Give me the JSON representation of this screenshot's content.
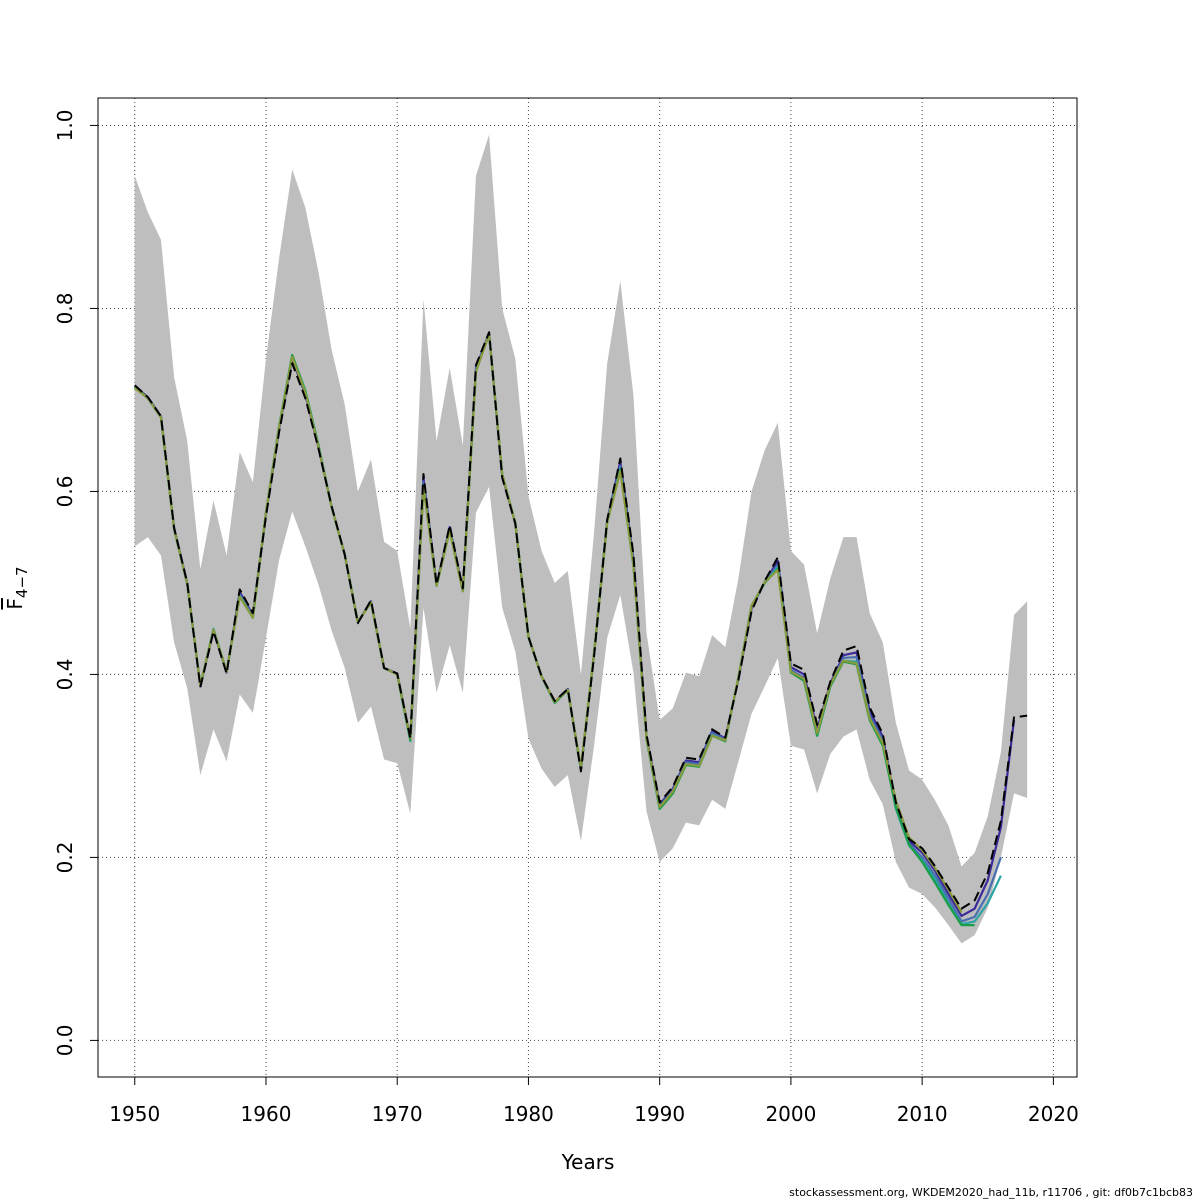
{
  "chart_data": {
    "type": "line",
    "title": "",
    "xlabel": "Years",
    "ylabel": "F̅ 4−7",
    "ylabel_main": "F",
    "ylabel_sub": "4−7",
    "xlim": [
      1947.2,
      2021.8
    ],
    "ylim": [
      -0.04,
      1.03
    ],
    "xticks": [
      1950,
      1960,
      1970,
      1980,
      1990,
      2000,
      2010,
      2020
    ],
    "yticks": [
      0.0,
      0.2,
      0.4,
      0.6,
      0.8,
      1.0
    ],
    "ytick_labels": [
      "0.0",
      "0.2",
      "0.4",
      "0.6",
      "0.8",
      "1.0"
    ],
    "grid": true,
    "confidence_band": {
      "color": "#bebebe",
      "x": [
        1950,
        1951,
        1952,
        1953,
        1954,
        1955,
        1956,
        1957,
        1958,
        1959,
        1960,
        1961,
        1962,
        1963,
        1964,
        1965,
        1966,
        1967,
        1968,
        1969,
        1970,
        1971,
        1972,
        1973,
        1974,
        1975,
        1976,
        1977,
        1978,
        1979,
        1980,
        1981,
        1982,
        1983,
        1984,
        1985,
        1986,
        1987,
        1988,
        1989,
        1990,
        1991,
        1992,
        1993,
        1994,
        1995,
        1996,
        1997,
        1998,
        1999,
        2000,
        2001,
        2002,
        2003,
        2004,
        2005,
        2006,
        2007,
        2008,
        2009,
        2010,
        2011,
        2012,
        2013,
        2014,
        2015,
        2016,
        2017,
        2018
      ],
      "upper": [
        0.945,
        0.905,
        0.875,
        0.725,
        0.655,
        0.515,
        0.59,
        0.53,
        0.643,
        0.61,
        0.745,
        0.855,
        0.952,
        0.91,
        0.84,
        0.755,
        0.695,
        0.6,
        0.635,
        0.545,
        0.535,
        0.45,
        0.81,
        0.655,
        0.735,
        0.65,
        0.945,
        0.99,
        0.8,
        0.745,
        0.595,
        0.535,
        0.5,
        0.513,
        0.4,
        0.555,
        0.74,
        0.83,
        0.705,
        0.445,
        0.35,
        0.363,
        0.402,
        0.398,
        0.443,
        0.43,
        0.505,
        0.6,
        0.645,
        0.675,
        0.535,
        0.52,
        0.445,
        0.505,
        0.55,
        0.55,
        0.467,
        0.435,
        0.347,
        0.295,
        0.285,
        0.262,
        0.235,
        0.19,
        0.205,
        0.245,
        0.315,
        0.465,
        0.48
      ],
      "lower": [
        0.54,
        0.55,
        0.53,
        0.435,
        0.385,
        0.29,
        0.34,
        0.305,
        0.378,
        0.358,
        0.44,
        0.525,
        0.578,
        0.54,
        0.498,
        0.448,
        0.407,
        0.347,
        0.365,
        0.307,
        0.303,
        0.248,
        0.473,
        0.38,
        0.432,
        0.38,
        0.577,
        0.605,
        0.473,
        0.425,
        0.33,
        0.297,
        0.277,
        0.29,
        0.218,
        0.322,
        0.44,
        0.487,
        0.402,
        0.25,
        0.195,
        0.21,
        0.238,
        0.235,
        0.263,
        0.253,
        0.305,
        0.357,
        0.387,
        0.418,
        0.322,
        0.318,
        0.27,
        0.313,
        0.332,
        0.34,
        0.285,
        0.258,
        0.195,
        0.167,
        0.16,
        0.145,
        0.126,
        0.106,
        0.115,
        0.145,
        0.2,
        0.27,
        0.265
      ]
    },
    "series": [
      {
        "color": "#000000",
        "dash": "10,5",
        "x": [
          1950,
          1951,
          1952,
          1953,
          1954,
          1955,
          1956,
          1957,
          1958,
          1959,
          1960,
          1961,
          1962,
          1963,
          1964,
          1965,
          1966,
          1967,
          1968,
          1969,
          1970,
          1971,
          1972,
          1973,
          1974,
          1975,
          1976,
          1977,
          1978,
          1979,
          1980,
          1981,
          1982,
          1983,
          1984,
          1985,
          1986,
          1987,
          1988,
          1989,
          1990,
          1991,
          1992,
          1993,
          1994,
          1995,
          1996,
          1997,
          1998,
          1999,
          2000,
          2001,
          2002,
          2003,
          2004,
          2005,
          2006,
          2007,
          2008,
          2009,
          2010,
          2011,
          2012,
          2013,
          2014,
          2015,
          2016,
          2017,
          2018
        ],
        "values": [
          0.716,
          0.703,
          0.682,
          0.56,
          0.5,
          0.386,
          0.447,
          0.401,
          0.493,
          0.467,
          0.573,
          0.665,
          0.74,
          0.702,
          0.647,
          0.584,
          0.531,
          0.456,
          0.481,
          0.407,
          0.401,
          0.33,
          0.619,
          0.498,
          0.563,
          0.494,
          0.738,
          0.774,
          0.615,
          0.565,
          0.441,
          0.398,
          0.371,
          0.384,
          0.294,
          0.42,
          0.569,
          0.636,
          0.531,
          0.334,
          0.26,
          0.277,
          0.309,
          0.307,
          0.34,
          0.331,
          0.394,
          0.469,
          0.502,
          0.528,
          0.412,
          0.405,
          0.345,
          0.392,
          0.426,
          0.431,
          0.364,
          0.335,
          0.26,
          0.22,
          0.21,
          0.19,
          0.167,
          0.144,
          0.153,
          0.183,
          0.24,
          0.353,
          0.355
        ]
      },
      {
        "color": "#3b2b9a",
        "x": [
          1950,
          1951,
          1952,
          1953,
          1954,
          1955,
          1956,
          1957,
          1958,
          1959,
          1960,
          1961,
          1962,
          1963,
          1964,
          1965,
          1966,
          1967,
          1968,
          1969,
          1970,
          1971,
          1972,
          1973,
          1974,
          1975,
          1976,
          1977,
          1978,
          1979,
          1980,
          1981,
          1982,
          1983,
          1984,
          1985,
          1986,
          1987,
          1988,
          1989,
          1990,
          1991,
          1992,
          1993,
          1994,
          1995,
          1996,
          1997,
          1998,
          1999,
          2000,
          2001,
          2002,
          2003,
          2004,
          2005,
          2006,
          2007,
          2008,
          2009,
          2010,
          2011,
          2012,
          2013,
          2014,
          2015,
          2016,
          2017
        ],
        "values": [
          0.715,
          0.703,
          0.682,
          0.56,
          0.5,
          0.387,
          0.448,
          0.402,
          0.49,
          0.465,
          0.575,
          0.668,
          0.745,
          0.706,
          0.648,
          0.583,
          0.531,
          0.457,
          0.48,
          0.407,
          0.401,
          0.33,
          0.615,
          0.498,
          0.561,
          0.493,
          0.735,
          0.773,
          0.617,
          0.565,
          0.441,
          0.398,
          0.37,
          0.384,
          0.296,
          0.422,
          0.568,
          0.633,
          0.526,
          0.332,
          0.258,
          0.275,
          0.306,
          0.304,
          0.338,
          0.33,
          0.395,
          0.472,
          0.501,
          0.524,
          0.408,
          0.4,
          0.34,
          0.39,
          0.421,
          0.424,
          0.36,
          0.332,
          0.257,
          0.218,
          0.205,
          0.185,
          0.16,
          0.136,
          0.144,
          0.175,
          0.233,
          0.35
        ]
      },
      {
        "color": "#4a6fb0",
        "x": [
          1950,
          1951,
          1952,
          1953,
          1954,
          1955,
          1956,
          1957,
          1958,
          1959,
          1960,
          1961,
          1962,
          1963,
          1964,
          1965,
          1966,
          1967,
          1968,
          1969,
          1970,
          1971,
          1972,
          1973,
          1974,
          1975,
          1976,
          1977,
          1978,
          1979,
          1980,
          1981,
          1982,
          1983,
          1984,
          1985,
          1986,
          1987,
          1988,
          1989,
          1990,
          1991,
          1992,
          1993,
          1994,
          1995,
          1996,
          1997,
          1998,
          1999,
          2000,
          2001,
          2002,
          2003,
          2004,
          2005,
          2006,
          2007,
          2008,
          2009,
          2010,
          2011,
          2012,
          2013,
          2014,
          2015,
          2016
        ],
        "values": [
          0.714,
          0.702,
          0.681,
          0.559,
          0.499,
          0.388,
          0.449,
          0.403,
          0.487,
          0.464,
          0.576,
          0.67,
          0.747,
          0.708,
          0.65,
          0.583,
          0.531,
          0.457,
          0.479,
          0.407,
          0.4,
          0.329,
          0.61,
          0.497,
          0.559,
          0.492,
          0.733,
          0.772,
          0.618,
          0.565,
          0.441,
          0.398,
          0.369,
          0.383,
          0.297,
          0.423,
          0.567,
          0.628,
          0.522,
          0.33,
          0.256,
          0.273,
          0.304,
          0.302,
          0.336,
          0.329,
          0.396,
          0.474,
          0.5,
          0.52,
          0.405,
          0.396,
          0.336,
          0.388,
          0.418,
          0.419,
          0.355,
          0.328,
          0.254,
          0.215,
          0.2,
          0.18,
          0.155,
          0.13,
          0.135,
          0.16,
          0.2
        ]
      },
      {
        "color": "#29a3a3",
        "x": [
          1950,
          1951,
          1952,
          1953,
          1954,
          1955,
          1956,
          1957,
          1958,
          1959,
          1960,
          1961,
          1962,
          1963,
          1964,
          1965,
          1966,
          1967,
          1968,
          1969,
          1970,
          1971,
          1972,
          1973,
          1974,
          1975,
          1976,
          1977,
          1978,
          1979,
          1980,
          1981,
          1982,
          1983,
          1984,
          1985,
          1986,
          1987,
          1988,
          1989,
          1990,
          1991,
          1992,
          1993,
          1994,
          1995,
          1996,
          1997,
          1998,
          1999,
          2000,
          2001,
          2002,
          2003,
          2004,
          2005,
          2006,
          2007,
          2008,
          2009,
          2010,
          2011,
          2012,
          2013,
          2014,
          2015,
          2016
        ],
        "values": [
          0.714,
          0.702,
          0.681,
          0.559,
          0.499,
          0.388,
          0.45,
          0.403,
          0.486,
          0.462,
          0.577,
          0.671,
          0.749,
          0.71,
          0.651,
          0.583,
          0.531,
          0.457,
          0.479,
          0.407,
          0.4,
          0.327,
          0.607,
          0.497,
          0.558,
          0.491,
          0.732,
          0.772,
          0.619,
          0.565,
          0.441,
          0.398,
          0.369,
          0.383,
          0.297,
          0.423,
          0.567,
          0.625,
          0.52,
          0.329,
          0.253,
          0.27,
          0.302,
          0.3,
          0.334,
          0.327,
          0.397,
          0.475,
          0.5,
          0.517,
          0.403,
          0.393,
          0.333,
          0.387,
          0.415,
          0.414,
          0.352,
          0.325,
          0.253,
          0.213,
          0.197,
          0.176,
          0.15,
          0.127,
          0.13,
          0.15,
          0.18
        ]
      },
      {
        "color": "#1a9e46",
        "x": [
          1950,
          1951,
          1952,
          1953,
          1954,
          1955,
          1956,
          1957,
          1958,
          1959,
          1960,
          1961,
          1962,
          1963,
          1964,
          1965,
          1966,
          1967,
          1968,
          1969,
          1970,
          1971,
          1972,
          1973,
          1974,
          1975,
          1976,
          1977,
          1978,
          1979,
          1980,
          1981,
          1982,
          1983,
          1984,
          1985,
          1986,
          1987,
          1988,
          1989,
          1990,
          1991,
          1992,
          1993,
          1994,
          1995,
          1996,
          1997,
          1998,
          1999,
          2000,
          2001,
          2002,
          2003,
          2004,
          2005,
          2006,
          2007,
          2008,
          2009,
          2010,
          2011,
          2012,
          2013,
          2014
        ],
        "values": [
          0.714,
          0.702,
          0.681,
          0.559,
          0.499,
          0.388,
          0.449,
          0.403,
          0.485,
          0.462,
          0.577,
          0.671,
          0.749,
          0.71,
          0.65,
          0.583,
          0.531,
          0.457,
          0.479,
          0.407,
          0.4,
          0.328,
          0.606,
          0.497,
          0.557,
          0.491,
          0.731,
          0.772,
          0.619,
          0.565,
          0.441,
          0.398,
          0.369,
          0.383,
          0.297,
          0.423,
          0.566,
          0.623,
          0.519,
          0.329,
          0.253,
          0.27,
          0.301,
          0.299,
          0.333,
          0.327,
          0.397,
          0.475,
          0.5,
          0.515,
          0.402,
          0.393,
          0.333,
          0.387,
          0.414,
          0.411,
          0.35,
          0.322,
          0.255,
          0.214,
          0.195,
          0.172,
          0.148,
          0.126,
          0.126
        ]
      },
      {
        "color": "#8a9a3c",
        "x": [
          1950,
          1951,
          1952,
          1953,
          1954,
          1955,
          1956,
          1957,
          1958,
          1959,
          1960,
          1961,
          1962,
          1963,
          1964,
          1965,
          1966,
          1967,
          1968,
          1969,
          1970,
          1971,
          1972,
          1973,
          1974,
          1975,
          1976,
          1977,
          1978,
          1979,
          1980,
          1981,
          1982,
          1983,
          1984,
          1985,
          1986,
          1987,
          1988,
          1989,
          1990,
          1991,
          1992,
          1993,
          1994,
          1995,
          1996,
          1997,
          1998,
          1999,
          2000,
          2001,
          2002,
          2003,
          2004,
          2005,
          2006,
          2007,
          2008,
          2009,
          2010,
          2011,
          2012,
          2013
        ],
        "values": [
          0.713,
          0.702,
          0.681,
          0.559,
          0.499,
          0.388,
          0.449,
          0.403,
          0.485,
          0.462,
          0.577,
          0.67,
          0.747,
          0.708,
          0.649,
          0.583,
          0.531,
          0.457,
          0.479,
          0.407,
          0.4,
          0.33,
          0.605,
          0.497,
          0.557,
          0.491,
          0.731,
          0.772,
          0.619,
          0.565,
          0.441,
          0.398,
          0.37,
          0.383,
          0.298,
          0.423,
          0.566,
          0.622,
          0.52,
          0.33,
          0.255,
          0.272,
          0.302,
          0.3,
          0.333,
          0.328,
          0.397,
          0.475,
          0.501,
          0.514,
          0.403,
          0.395,
          0.336,
          0.389,
          0.415,
          0.412,
          0.352,
          0.325,
          0.262,
          0.222,
          0.208,
          0.188,
          0.165,
          0.14
        ]
      }
    ]
  },
  "footer": "stockassessment.org, WKDEM2020_had_11b, r11706 , git: df0b7c1bcb83"
}
